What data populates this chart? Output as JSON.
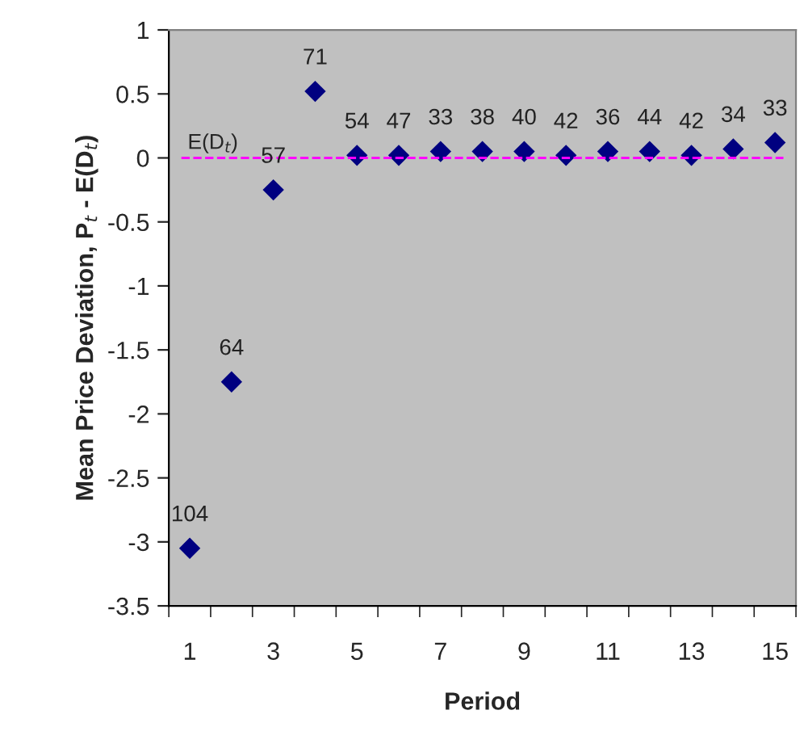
{
  "chart_data": {
    "type": "scatter",
    "xlabel": "Period",
    "ylabel": "Mean Price Deviation, P$_{t}$ - E(D$_{t}$)",
    "x": [
      1,
      2,
      3,
      4,
      5,
      6,
      7,
      8,
      9,
      10,
      11,
      12,
      13,
      14,
      15
    ],
    "series": [
      {
        "color": "#000080",
        "values": [
          -3.05,
          -1.75,
          -0.25,
          0.52,
          0.02,
          0.02,
          0.05,
          0.05,
          0.05,
          0.02,
          0.05,
          0.05,
          0.02,
          0.07,
          0.12
        ]
      }
    ],
    "annotations": [
      {
        "text": "104",
        "x": 1,
        "y": -3.05
      },
      {
        "text": "64",
        "x": 2,
        "y": -1.75
      },
      {
        "text": "57",
        "x": 3,
        "y": -0.25
      },
      {
        "text": "71",
        "x": 4,
        "y": 0.52
      },
      {
        "text": "54",
        "x": 5,
        "y": 0.02
      },
      {
        "text": "47",
        "x": 6,
        "y": 0.02
      },
      {
        "text": "33",
        "x": 7,
        "y": 0.05
      },
      {
        "text": "38",
        "x": 8,
        "y": 0.05
      },
      {
        "text": "40",
        "x": 9,
        "y": 0.05
      },
      {
        "text": "42",
        "x": 10,
        "y": 0.02
      },
      {
        "text": "36",
        "x": 11,
        "y": 0.05
      },
      {
        "text": "44",
        "x": 12,
        "y": 0.05
      },
      {
        "text": "42",
        "x": 13,
        "y": 0.02
      },
      {
        "text": "34",
        "x": 14,
        "y": 0.07
      },
      {
        "text": "33",
        "x": 15,
        "y": 0.12
      }
    ],
    "xlim": [
      0.5,
      15.5
    ],
    "xticks": [
      1,
      3,
      5,
      7,
      9,
      11,
      13,
      15,
      {
        "value": 0.5,
        "label": null
      },
      {
        "value": 1.5,
        "label": null
      },
      {
        "value": 2.5,
        "label": null
      },
      {
        "value": 3.5,
        "label": null
      },
      {
        "value": 4.5,
        "label": null
      },
      {
        "value": 5.5,
        "label": null
      },
      {
        "value": 6.5,
        "label": null
      },
      {
        "value": 7.5,
        "label": null
      },
      {
        "value": 8.5,
        "label": null
      },
      {
        "value": 9.5,
        "label": null
      },
      {
        "value": 10.5,
        "label": null
      },
      {
        "value": 11.5,
        "label": null
      },
      {
        "value": 12.5,
        "label": null
      },
      {
        "value": 13.5,
        "label": null
      },
      {
        "value": 14.5,
        "label": null
      },
      {
        "value": 15.5,
        "label": null
      }
    ],
    "ylim": [
      -3.5,
      1
    ],
    "yticks": [
      -3.5,
      -3,
      -2.5,
      -2,
      -1.5,
      -1,
      -0.5,
      0,
      0.5,
      1
    ],
    "ref_lines": [
      {
        "axis": "y",
        "value": 0,
        "label": "E(D$_{t}$)",
        "color": "#ff00ff",
        "line_style": "dashed"
      }
    ],
    "marker": "diamond",
    "grid": false,
    "legend": false
  }
}
